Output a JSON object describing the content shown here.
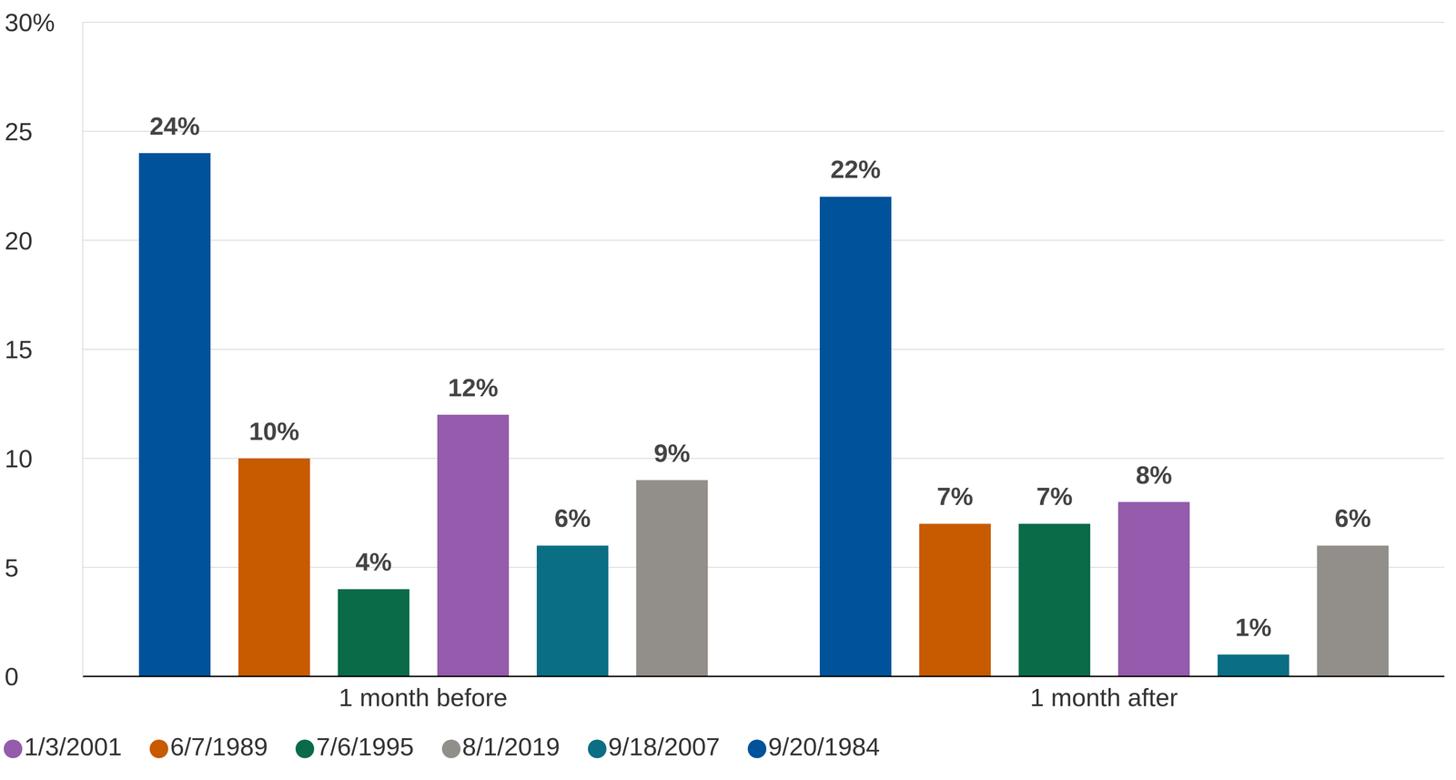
{
  "chart_data": {
    "type": "bar",
    "categories": [
      "1 month before",
      "1 month after"
    ],
    "series": [
      {
        "name": "9/20/1984",
        "color": "#00529b",
        "values": [
          24,
          22
        ],
        "value_labels": [
          "24%",
          "22%"
        ]
      },
      {
        "name": "6/7/1989",
        "color": "#c85a00",
        "values": [
          10,
          7
        ],
        "value_labels": [
          "10%",
          "7%"
        ]
      },
      {
        "name": "7/6/1995",
        "color": "#0a6b48",
        "values": [
          4,
          7
        ],
        "value_labels": [
          "4%",
          "7%"
        ]
      },
      {
        "name": "1/3/2001",
        "color": "#955bac",
        "values": [
          12,
          8
        ],
        "value_labels": [
          "12%",
          "8%"
        ]
      },
      {
        "name": "9/18/2007",
        "color": "#0a6e85",
        "values": [
          6,
          1
        ],
        "value_labels": [
          "6%",
          "1%"
        ]
      },
      {
        "name": "8/1/2019",
        "color": "#928e8a",
        "values": [
          9,
          6
        ],
        "value_labels": [
          "9%",
          "6%"
        ]
      }
    ],
    "ylim": [
      0,
      30
    ],
    "yticks": [
      0,
      5,
      10,
      15,
      20,
      25,
      {
        "value": 30,
        "label": "30%"
      }
    ],
    "grid": true,
    "data_labels": true,
    "legend": "bottom-left"
  }
}
